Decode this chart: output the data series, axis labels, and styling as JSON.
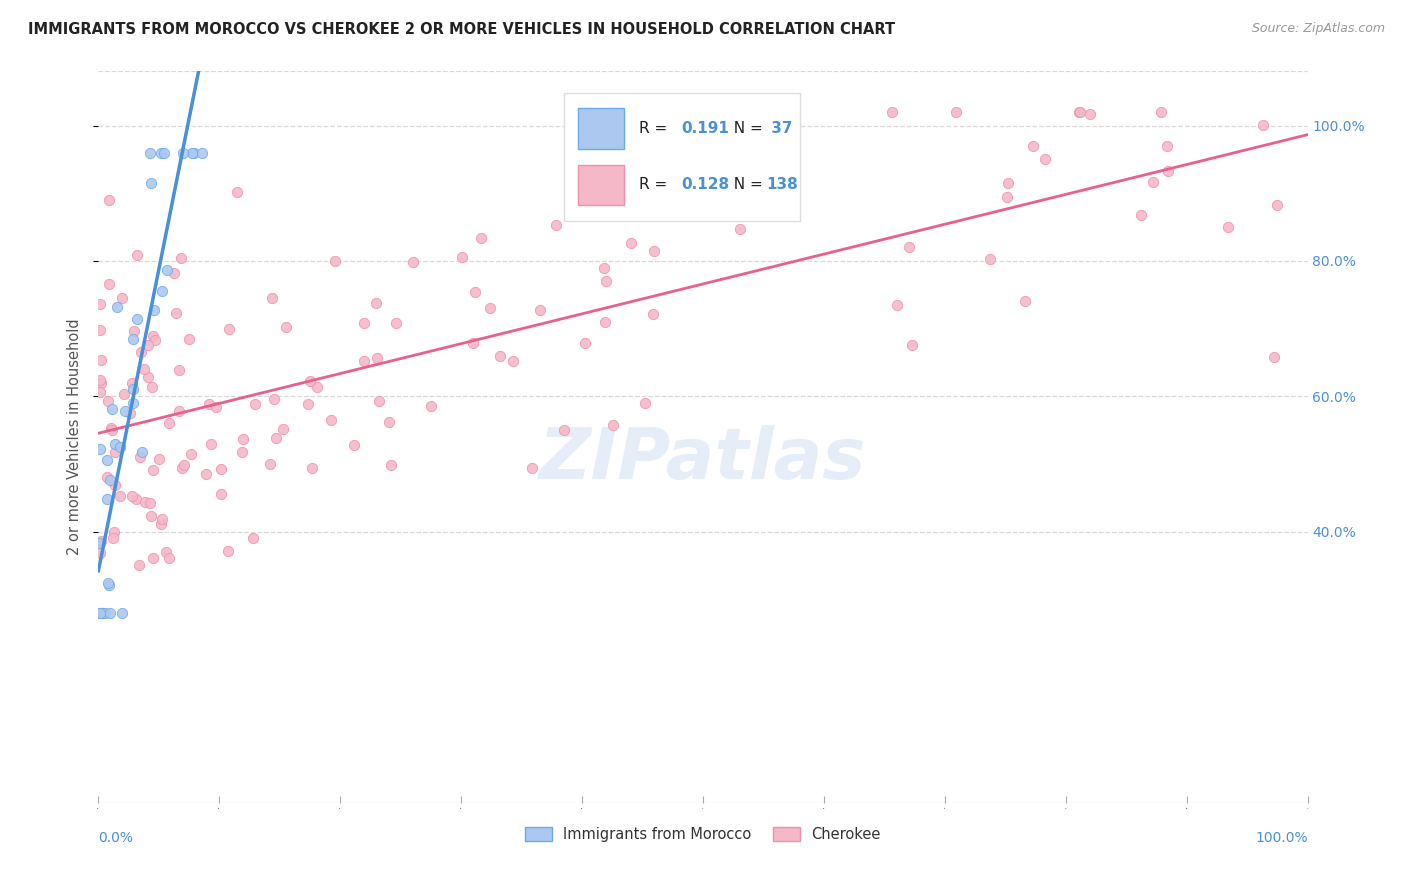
{
  "title": "IMMIGRANTS FROM MOROCCO VS CHEROKEE 2 OR MORE VEHICLES IN HOUSEHOLD CORRELATION CHART",
  "source": "Source: ZipAtlas.com",
  "ylabel": "2 or more Vehicles in Household",
  "r_morocco": 0.191,
  "n_morocco": 37,
  "r_cherokee": 0.128,
  "n_cherokee": 138,
  "color_morocco_fill": "#adc8f0",
  "color_morocco_edge": "#6aaae8",
  "color_cherokee_fill": "#f5b8c8",
  "color_cherokee_edge": "#f090a8",
  "color_morocco_line": "#4a90d9",
  "color_cherokee_line": "#e8608c",
  "color_dashed": "#b0cce8",
  "watermark": "ZIPatlas",
  "background_color": "#ffffff",
  "grid_color": "#d8d8d8",
  "ytick_color": "#4a90d9",
  "title_color": "#222222",
  "source_color": "#999999"
}
